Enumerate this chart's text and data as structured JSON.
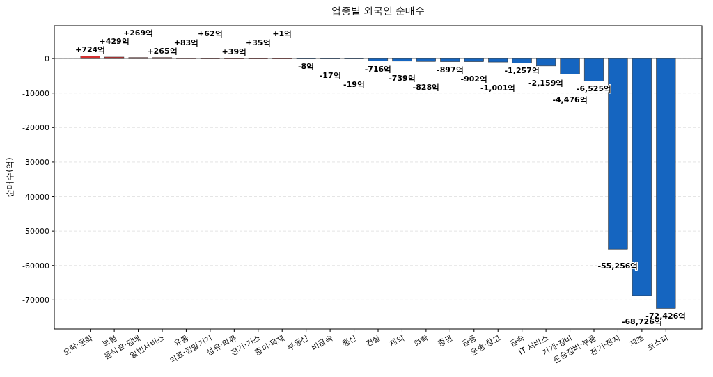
{
  "chart_data": {
    "type": "bar",
    "title": "업종별 외국인 순매수",
    "ylabel": "순매수(억)",
    "categories": [
      "오락·문화",
      "보험",
      "음식료·담배",
      "일반서비스",
      "유통",
      "의료·정밀기기",
      "섬유·의류",
      "전기·가스",
      "종이·목재",
      "부동산",
      "비금속",
      "통신",
      "건설",
      "제약",
      "화학",
      "증권",
      "금융",
      "운송·창고",
      "금속",
      "IT 서비스",
      "기계·장비",
      "운송장비·부품",
      "전기·전자",
      "제조",
      "코스피"
    ],
    "values": [
      724,
      429,
      269,
      265,
      83,
      62,
      39,
      35,
      1,
      -8,
      -17,
      -19,
      -716,
      -739,
      -828,
      -897,
      -902,
      -1001,
      -1257,
      -2159,
      -4476,
      -6525,
      -55256,
      -68726,
      -72426
    ],
    "colors": [
      "#d32f2f",
      "#d32f2f",
      "#d32f2f",
      "#d32f2f",
      "#d32f2f",
      "#d32f2f",
      "#d32f2f",
      "#d32f2f",
      "#d32f2f",
      "#1565c0",
      "#1565c0",
      "#1565c0",
      "#1565c0",
      "#1565c0",
      "#1565c0",
      "#1565c0",
      "#1565c0",
      "#1565c0",
      "#1565c0",
      "#1565c0",
      "#1565c0",
      "#1565c0",
      "#1565c0",
      "#1565c0",
      "#1565c0"
    ],
    "value_labels": [
      "+724억",
      "+429억",
      "+269억",
      "+265억",
      "+83억",
      "+62억",
      "+39억",
      "+35억",
      "+1억",
      "-8억",
      "-17억",
      "-19억",
      "-716억",
      "-739억",
      "-828억",
      "-897억",
      "-902억",
      "-1,001억",
      "-1,257억",
      "-2,159억",
      "-4,476억",
      "-6,525억",
      "-55,256억",
      "-68,726억",
      "-72,426억"
    ],
    "ylim": [
      -78400,
      9500
    ],
    "yticks": [
      0,
      -10000,
      -20000,
      -30000,
      -40000,
      -50000,
      -60000,
      -70000
    ],
    "grid": "y",
    "ref_lines": [
      {
        "axis": "y",
        "value": 0,
        "color": "#999999"
      }
    ]
  }
}
